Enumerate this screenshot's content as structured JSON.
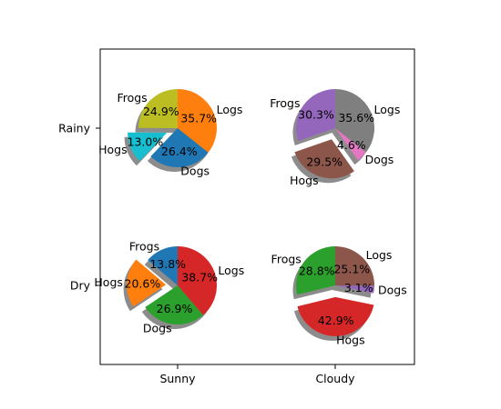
{
  "chart_data": {
    "type": "pie",
    "columns": [
      "Sunny",
      "Cloudy"
    ],
    "rows": [
      "Rainy",
      "Dry"
    ],
    "grid": false,
    "pies": [
      {
        "row": "Rainy",
        "column": "Sunny",
        "slices": [
          {
            "label": "Frogs",
            "percent": "24.9%",
            "value": 24.9,
            "color": "#bcbd22",
            "explode": 0
          },
          {
            "label": "Hogs",
            "percent": "13.0%",
            "value": 13.0,
            "color": "#17becf",
            "explode": 0.3
          },
          {
            "label": "Dogs",
            "percent": "26.4%",
            "value": 26.4,
            "color": "#1f77b4",
            "explode": 0
          },
          {
            "label": "Logs",
            "percent": "35.7%",
            "value": 35.7,
            "color": "#ff7f0e",
            "explode": 0
          }
        ]
      },
      {
        "row": "Rainy",
        "column": "Cloudy",
        "slices": [
          {
            "label": "Frogs",
            "percent": "30.3%",
            "value": 30.3,
            "color": "#9467bd",
            "explode": 0
          },
          {
            "label": "Hogs",
            "percent": "29.5%",
            "value": 29.5,
            "color": "#8c564b",
            "explode": 0.3
          },
          {
            "label": "Dogs",
            "percent": "4.6%",
            "value": 4.6,
            "color": "#e377c2",
            "explode": 0
          },
          {
            "label": "Logs",
            "percent": "35.6%",
            "value": 35.6,
            "color": "#7f7f7f",
            "explode": 0
          }
        ]
      },
      {
        "row": "Dry",
        "column": "Sunny",
        "slices": [
          {
            "label": "Frogs",
            "percent": "13.8%",
            "value": 13.8,
            "color": "#1f77b4",
            "explode": 0
          },
          {
            "label": "Hogs",
            "percent": "20.6%",
            "value": 20.6,
            "color": "#ff7f0e",
            "explode": 0.3
          },
          {
            "label": "Dogs",
            "percent": "26.9%",
            "value": 26.9,
            "color": "#2ca02c",
            "explode": 0
          },
          {
            "label": "Logs",
            "percent": "38.7%",
            "value": 38.7,
            "color": "#d62728",
            "explode": 0
          }
        ]
      },
      {
        "row": "Dry",
        "column": "Cloudy",
        "slices": [
          {
            "label": "Frogs",
            "percent": "28.8%",
            "value": 28.8,
            "color": "#2ca02c",
            "explode": 0
          },
          {
            "label": "Hogs",
            "percent": "42.9%",
            "value": 42.9,
            "color": "#d62728",
            "explode": 0.3
          },
          {
            "label": "Dogs",
            "percent": "3.1%",
            "value": 3.1,
            "color": "#9467bd",
            "explode": 0
          },
          {
            "label": "Logs",
            "percent": "25.1%",
            "value": 25.1,
            "color": "#8c564b",
            "explode": 0
          }
        ]
      }
    ]
  }
}
